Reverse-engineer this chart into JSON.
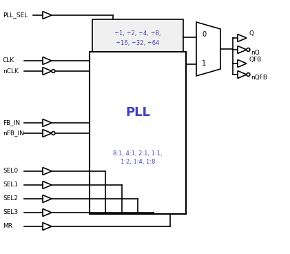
{
  "bg_color": "#ffffff",
  "line_color": "#000000",
  "blue": "#4040C0",
  "black": "#000000",
  "div_text_line1": "÷1, ÷2, ÷4, ÷8,",
  "div_text_line2": "÷16, ÷32, ÷64",
  "pll_label": "PLL",
  "pll_ratio_line1": "8:1, 4:1, 2:1, 1:1,",
  "pll_ratio_line2": "1:2, 1:4, 1:8",
  "mux_label_0": "0",
  "mux_label_1": "1",
  "input_labels": [
    "PLL_SEL",
    "CLK",
    "nCLK",
    "FB_IN",
    "nFB_IN",
    "SEL0",
    "SEL1",
    "SEL2",
    "SEL3",
    "MR"
  ],
  "output_labels": [
    "Q",
    "nQ",
    "QFB",
    "nQFB"
  ]
}
